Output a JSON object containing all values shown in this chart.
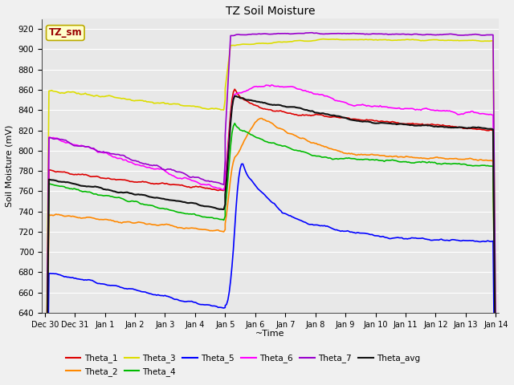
{
  "title": "TZ Soil Moisture",
  "ylabel": "Soil Moisture (mV)",
  "xlabel": "~Time",
  "box_label": "TZ_sm",
  "ylim": [
    640,
    930
  ],
  "yticks": [
    640,
    660,
    680,
    700,
    720,
    740,
    760,
    780,
    800,
    820,
    840,
    860,
    880,
    900,
    920
  ],
  "fig_bg": "#f0f0f0",
  "ax_bg": "#e8e8e8",
  "series_colors": {
    "Theta_1": "#dd0000",
    "Theta_2": "#ff8800",
    "Theta_3": "#dddd00",
    "Theta_4": "#00bb00",
    "Theta_5": "#0000ff",
    "Theta_6": "#ff00ff",
    "Theta_7": "#9900cc",
    "Theta_avg": "#111111"
  },
  "xtick_labels": [
    "Dec 30",
    "Dec 31",
    "Jan 1",
    "Jan 2",
    "Jan 3",
    "Jan 4",
    "Jan 5",
    "Jan 6",
    "Jan 7",
    "Jan 8",
    "Jan 9",
    "Jan 10",
    "Jan 11",
    "Jan 12",
    "Jan 13",
    "Jan 14"
  ]
}
